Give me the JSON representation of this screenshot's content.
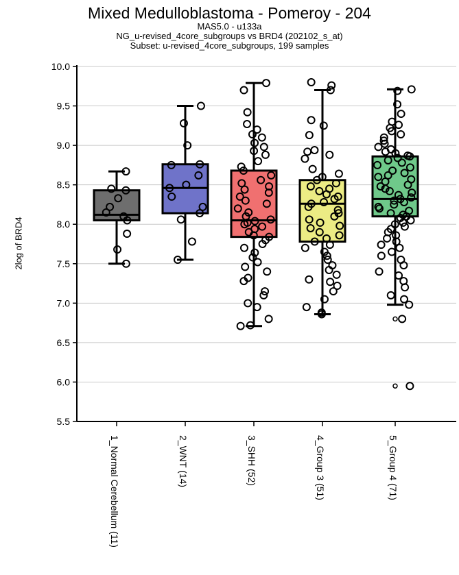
{
  "title": "Mixed Medulloblastoma - Pomeroy - 204",
  "subtitle_lines": [
    "MAS5.0 - u133a",
    "NG_u-revised_4core_subgroups vs BRD4 (202102_s_at)",
    "Subset: u-revised_4core_subgroups, 199 samples"
  ],
  "colors": {
    "group1": "#6e6e6e",
    "group2": "#6f73c9",
    "group3": "#f07070",
    "group4": "#ecec84",
    "group5": "#6fc98a",
    "gridline": "#c8c8c8",
    "axis": "#000000"
  },
  "chart_data": {
    "type": "box",
    "title": "Mixed Medulloblastoma - Pomeroy - 204",
    "ylabel": "2log of BRD4",
    "xlabel": "",
    "ylim": [
      5.5,
      10.0
    ],
    "yticks": [
      "5.5",
      "6.0",
      "6.5",
      "7.0",
      "7.5",
      "8.0",
      "8.5",
      "9.0",
      "9.5",
      "10.0"
    ],
    "grid": "horizontal",
    "categories": [
      "1_Normal Cerebellum (11)",
      "2_WNT (14)",
      "3_SHH (52)",
      "4_Group 3 (51)",
      "5_Group 4 (71)"
    ],
    "boxes": [
      {
        "whisker_low": 7.5,
        "q1": 8.05,
        "median": 8.12,
        "q3": 8.43,
        "whisker_high": 8.67,
        "outliers": []
      },
      {
        "whisker_low": 7.55,
        "q1": 8.14,
        "median": 8.46,
        "q3": 8.76,
        "whisker_high": 9.5,
        "outliers": []
      },
      {
        "whisker_low": 6.71,
        "q1": 7.84,
        "median": 8.05,
        "q3": 8.68,
        "whisker_high": 9.79,
        "outliers": []
      },
      {
        "whisker_low": 6.86,
        "q1": 7.78,
        "median": 8.26,
        "q3": 8.56,
        "whisker_high": 9.7,
        "outliers": []
      },
      {
        "whisker_low": 6.98,
        "q1": 8.1,
        "median": 8.32,
        "q3": 8.86,
        "whisker_high": 9.71,
        "outliers": [
          6.8,
          5.95
        ]
      }
    ],
    "points": [
      [
        8.67,
        8.45,
        8.43,
        8.33,
        8.22,
        8.15,
        8.1,
        8.05,
        7.88,
        7.68,
        7.5
      ],
      [
        9.5,
        9.28,
        9.0,
        8.76,
        8.75,
        8.62,
        8.5,
        8.46,
        8.35,
        8.22,
        8.14,
        8.06,
        7.78,
        7.55
      ],
      [
        9.79,
        9.7,
        9.42,
        9.27,
        9.2,
        9.14,
        9.1,
        9.03,
        8.98,
        8.93,
        8.88,
        8.8,
        8.73,
        8.68,
        8.62,
        8.56,
        8.52,
        8.48,
        8.44,
        8.4,
        8.35,
        8.3,
        8.26,
        8.2,
        8.15,
        8.1,
        8.06,
        8.04,
        8.02,
        8.0,
        7.97,
        7.94,
        7.9,
        7.86,
        7.84,
        7.8,
        7.75,
        7.7,
        7.64,
        7.58,
        7.52,
        7.46,
        7.4,
        7.32,
        7.28,
        7.15,
        7.1,
        7.0,
        6.95,
        6.8,
        6.72,
        6.71
      ],
      [
        9.8,
        9.76,
        9.7,
        9.32,
        9.25,
        9.13,
        8.94,
        8.92,
        8.88,
        8.83,
        8.7,
        8.64,
        8.6,
        8.56,
        8.52,
        8.48,
        8.45,
        8.42,
        8.38,
        8.35,
        8.32,
        8.28,
        8.26,
        8.22,
        8.18,
        8.14,
        8.1,
        8.06,
        8.02,
        7.98,
        7.95,
        7.9,
        7.86,
        7.82,
        7.78,
        7.74,
        7.7,
        7.65,
        7.6,
        7.55,
        7.48,
        7.42,
        7.36,
        7.3,
        7.27,
        7.22,
        7.15,
        7.05,
        6.95,
        6.88,
        6.86
      ],
      [
        9.71,
        9.69,
        9.52,
        9.4,
        9.3,
        9.26,
        9.22,
        9.18,
        9.14,
        9.1,
        9.06,
        9.02,
        8.98,
        8.95,
        8.92,
        8.9,
        8.87,
        8.86,
        8.84,
        8.81,
        8.78,
        8.75,
        8.72,
        8.68,
        8.65,
        8.62,
        8.6,
        8.57,
        8.54,
        8.5,
        8.48,
        8.45,
        8.42,
        8.4,
        8.37,
        8.34,
        8.32,
        8.3,
        8.28,
        8.25,
        8.22,
        8.2,
        8.17,
        8.14,
        8.12,
        8.1,
        8.08,
        8.05,
        8.02,
        8.0,
        7.97,
        7.94,
        7.9,
        7.86,
        7.82,
        7.78,
        7.74,
        7.7,
        7.65,
        7.6,
        7.55,
        7.48,
        7.4,
        7.35,
        7.28,
        7.2,
        7.1,
        7.05,
        6.98,
        6.8,
        5.95
      ]
    ]
  }
}
